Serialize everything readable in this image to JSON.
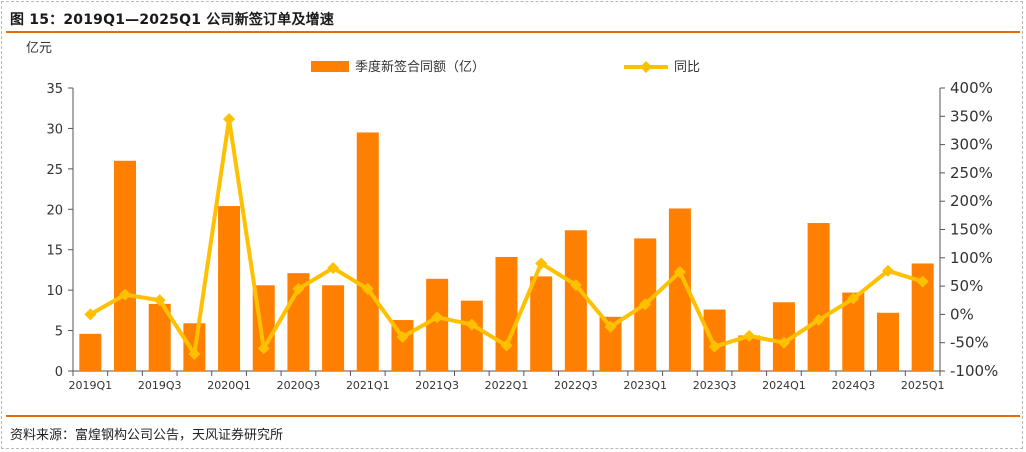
{
  "header": {
    "title": "图 15：2019Q1—2025Q1 公司新签订单及增速"
  },
  "footer": {
    "source": "资料来源：富煌钢构公司公告，天风证券研究所"
  },
  "colors": {
    "bar": "#ff7f00",
    "line": "#ffc000",
    "accent_rule": "#e46c0a"
  },
  "chart_data": {
    "type": "bar",
    "title": "",
    "y_unit_label": "亿元",
    "categories": [
      "2019Q1",
      "2019Q2",
      "2019Q3",
      "2019Q4",
      "2020Q1",
      "2020Q2",
      "2020Q3",
      "2020Q4",
      "2021Q1",
      "2021Q2",
      "2021Q3",
      "2021Q4",
      "2022Q1",
      "2022Q2",
      "2022Q3",
      "2022Q4",
      "2023Q1",
      "2023Q2",
      "2023Q3",
      "2023Q4",
      "2024Q1",
      "2024Q2",
      "2024Q3",
      "2024Q4",
      "2025Q1"
    ],
    "x_tick_labels": [
      "2019Q1",
      "",
      "2019Q3",
      "",
      "2020Q1",
      "",
      "2020Q3",
      "",
      "2021Q1",
      "",
      "2021Q3",
      "",
      "2022Q1",
      "",
      "2022Q3",
      "",
      "2023Q1",
      "",
      "2023Q3",
      "",
      "2024Q1",
      "",
      "2024Q3",
      "",
      "2025Q1"
    ],
    "series": [
      {
        "name": "季度新签合同额（亿）",
        "type": "bar",
        "axis": "left",
        "values": [
          4.6,
          26.0,
          8.3,
          5.9,
          20.4,
          10.6,
          12.1,
          10.6,
          29.5,
          6.3,
          11.4,
          8.7,
          14.1,
          11.7,
          17.4,
          6.7,
          16.4,
          20.1,
          7.6,
          4.4,
          8.5,
          18.3,
          9.7,
          7.2,
          13.3
        ]
      },
      {
        "name": "同比",
        "type": "line",
        "axis": "right",
        "values": [
          0,
          35,
          25,
          -70,
          345,
          -60,
          45,
          82,
          45,
          -40,
          -5,
          -18,
          -55,
          90,
          52,
          -22,
          18,
          75,
          -57,
          -38,
          -50,
          -10,
          28,
          77,
          58
        ]
      }
    ],
    "y_left": {
      "min": 0,
      "max": 35,
      "ticks": [
        "0",
        "5",
        "10",
        "15",
        "20",
        "25",
        "30",
        "35"
      ]
    },
    "y_right": {
      "min": -100,
      "max": 400,
      "ticks": [
        "-100%",
        "-50%",
        "0%",
        "50%",
        "100%",
        "150%",
        "200%",
        "250%",
        "300%",
        "350%",
        "400%"
      ]
    },
    "legend": {
      "placement": "top-center"
    },
    "grid": false
  }
}
